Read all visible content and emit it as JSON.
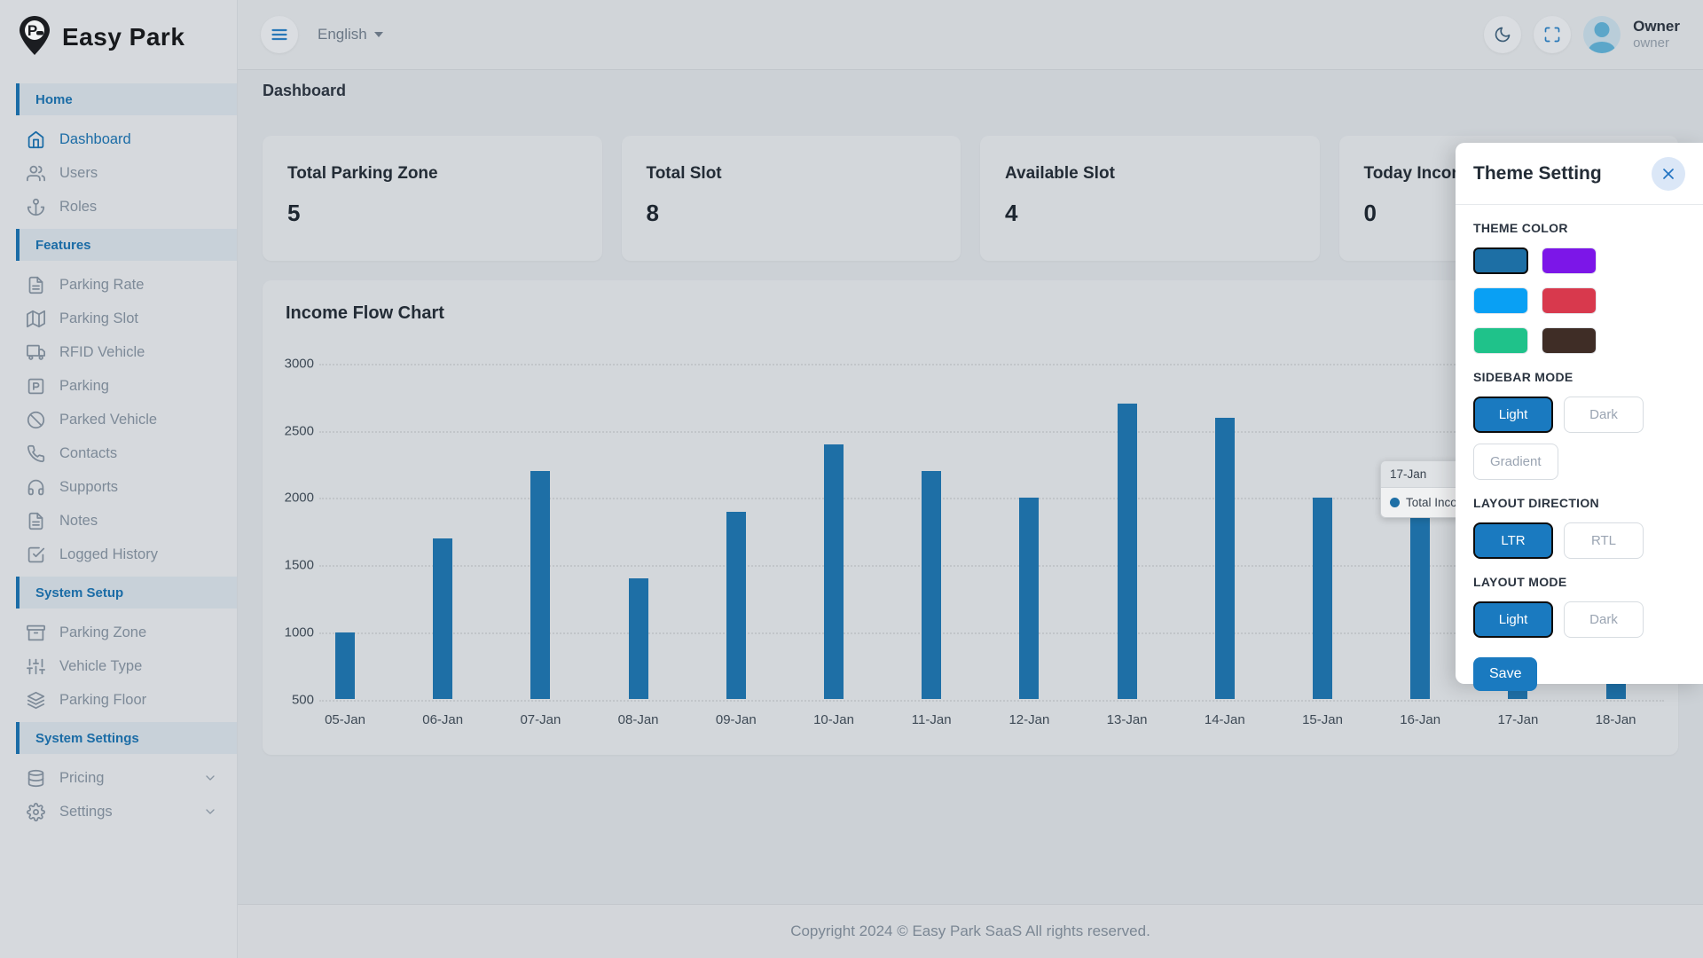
{
  "brand": {
    "name": "Easy Park"
  },
  "header": {
    "menu_icon": "menu",
    "language": "English",
    "dark_mode_icon": "moon",
    "fullscreen_icon": "maximize",
    "user_name": "Owner",
    "user_role": "owner"
  },
  "breadcrumb": "Dashboard",
  "sidebar": {
    "sections": [
      {
        "label": "Home",
        "items": [
          {
            "icon": "home",
            "label": "Dashboard",
            "active": true
          },
          {
            "icon": "users",
            "label": "Users"
          },
          {
            "icon": "anchor",
            "label": "Roles"
          }
        ]
      },
      {
        "label": "Features",
        "items": [
          {
            "icon": "file-text",
            "label": "Parking Rate"
          },
          {
            "icon": "map",
            "label": "Parking Slot"
          },
          {
            "icon": "truck",
            "label": "RFID Vehicle"
          },
          {
            "icon": "parking",
            "label": "Parking"
          },
          {
            "icon": "ban",
            "label": "Parked Vehicle"
          },
          {
            "icon": "phone",
            "label": "Contacts"
          },
          {
            "icon": "headphones",
            "label": "Supports"
          },
          {
            "icon": "file-text",
            "label": "Notes"
          },
          {
            "icon": "check-square",
            "label": "Logged History"
          }
        ]
      },
      {
        "label": "System Setup",
        "items": [
          {
            "icon": "archive",
            "label": "Parking Zone"
          },
          {
            "icon": "sliders",
            "label": "Vehicle Type"
          },
          {
            "icon": "layers",
            "label": "Parking Floor"
          }
        ]
      },
      {
        "label": "System Settings",
        "items": [
          {
            "icon": "database",
            "label": "Pricing",
            "expandable": true
          },
          {
            "icon": "settings",
            "label": "Settings",
            "expandable": true
          }
        ]
      }
    ]
  },
  "stats": [
    {
      "label": "Total Parking Zone",
      "value": "5"
    },
    {
      "label": "Total Slot",
      "value": "8"
    },
    {
      "label": "Available Slot",
      "value": "4"
    },
    {
      "label": "Today Income",
      "value": "0"
    }
  ],
  "chart_data": {
    "type": "bar",
    "title": "Income Flow Chart",
    "categories": [
      "05-Jan",
      "06-Jan",
      "07-Jan",
      "08-Jan",
      "09-Jan",
      "10-Jan",
      "11-Jan",
      "12-Jan",
      "13-Jan",
      "14-Jan",
      "15-Jan",
      "16-Jan",
      "17-Jan",
      "18-Jan"
    ],
    "series": [
      {
        "name": "Total Income",
        "values": [
          1000,
          1700,
          2200,
          1400,
          1900,
          2400,
          2200,
          2000,
          2700,
          2600,
          2000,
          2100,
          2200,
          1600
        ]
      }
    ],
    "ylim": [
      500,
      3000
    ],
    "yticks": [
      500,
      1000,
      1500,
      2000,
      2500,
      3000
    ],
    "grid": "horizontal-dotted",
    "legend_position": "none",
    "bar_color": "#1e6fa6"
  },
  "tooltip": {
    "category": "17-Jan",
    "series_label": "Total Income:"
  },
  "theme_panel": {
    "title": "Theme Setting",
    "close_icon": "x",
    "theme_color_label": "THEME COLOR",
    "theme_colors": [
      "#1d6fa5",
      "#7c16e8",
      "#09a0f4",
      "#d8394d",
      "#1fc28a",
      "#3f2d26"
    ],
    "selected_color_index": 0,
    "sidebar_mode_label": "SIDEBAR MODE",
    "sidebar_modes": [
      "Light",
      "Dark",
      "Gradient"
    ],
    "sidebar_mode_selected": "Light",
    "layout_direction_label": "LAYOUT DIRECTION",
    "layout_directions": [
      "LTR",
      "RTL"
    ],
    "layout_direction_selected": "LTR",
    "layout_mode_label": "LAYOUT MODE",
    "layout_modes": [
      "Light",
      "Dark"
    ],
    "layout_mode_selected": "Light",
    "save_label": "Save"
  },
  "footer": {
    "copyright": "Copyright 2024 © Easy Park SaaS All rights reserved."
  },
  "colors": {
    "accent": "#1b6ca6",
    "panel_accent": "#1a7ac0",
    "bar": "#1e6fa6",
    "page_bg": "#ccd1d6",
    "card_bg": "#d3d7db",
    "sidebar_bg": "#d6d9dd"
  }
}
